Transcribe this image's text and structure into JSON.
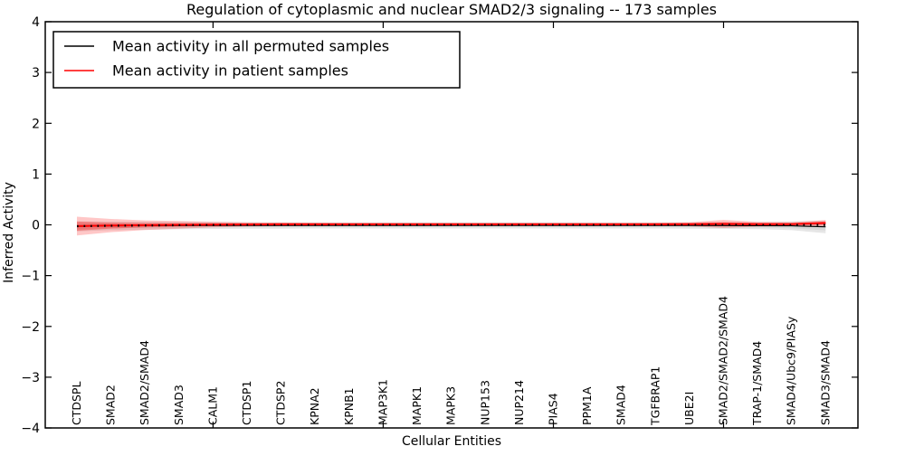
{
  "title": "Regulation of cytoplasmic and nuclear SMAD2/3 signaling -- 173 samples",
  "legend": {
    "items": [
      {
        "label": "Mean activity in all permuted samples",
        "color": "#000000"
      },
      {
        "label": "Mean activity in patient samples",
        "color": "#ff0000"
      }
    ],
    "position": "upper left"
  },
  "chart_data": {
    "type": "line",
    "title": "Regulation of cytoplasmic and nuclear SMAD2/3 signaling -- 173 samples",
    "xlabel": "Cellular Entities",
    "ylabel": "Inferred Activity",
    "ylim": [
      -4,
      4
    ],
    "grid": false,
    "ytick_values": [
      4,
      3,
      2,
      1,
      0,
      -1,
      -2,
      -3,
      -4
    ],
    "ytick_labels": [
      "4",
      "3",
      "2",
      "1",
      "0",
      "−1",
      "−2",
      "−3",
      "−4"
    ],
    "xtick_indices": [
      4,
      9,
      14,
      19
    ],
    "categories": [
      "CTDSPL",
      "SMAD2",
      "SMAD2/SMAD4",
      "SMAD3",
      "CALM1",
      "CTDSP1",
      "CTDSP2",
      "KPNA2",
      "KPNB1",
      "MAP3K1",
      "MAPK1",
      "MAPK3",
      "NUP153",
      "NUP214",
      "PIAS4",
      "PPM1A",
      "SMAD4",
      "TGFBRAP1",
      "UBE2I",
      "SMAD2/SMAD2/SMAD4",
      "TRAP-1/SMAD4",
      "SMAD4/Ubc9/PIASy",
      "SMAD3/SMAD4"
    ],
    "series": [
      {
        "name": "Mean activity in all permuted samples",
        "color": "#000000",
        "line_style": "solid-with-dotted-overlay",
        "values": [
          -0.03,
          -0.02,
          -0.018,
          -0.015,
          -0.013,
          -0.012,
          -0.012,
          -0.012,
          -0.012,
          -0.012,
          -0.012,
          -0.012,
          -0.012,
          -0.012,
          -0.012,
          -0.012,
          -0.012,
          -0.012,
          -0.013,
          -0.015,
          -0.016,
          -0.02,
          -0.04
        ],
        "std_band": [
          0.1,
          0.085,
          0.078,
          0.072,
          0.068,
          0.064,
          0.062,
          0.06,
          0.06,
          0.06,
          0.06,
          0.06,
          0.06,
          0.06,
          0.06,
          0.06,
          0.06,
          0.06,
          0.062,
          0.066,
          0.07,
          0.085,
          0.125
        ],
        "band_color": "#777777"
      },
      {
        "name": "Mean activity in patient samples",
        "color": "#ff0000",
        "line_style": "solid",
        "values": [
          -0.025,
          -0.015,
          -0.007,
          0.0,
          0.005,
          0.008,
          0.01,
          0.01,
          0.01,
          0.01,
          0.01,
          0.01,
          0.01,
          0.01,
          0.01,
          0.01,
          0.01,
          0.01,
          0.012,
          0.018,
          0.012,
          0.014,
          0.035
        ],
        "std_band_outer": [
          0.185,
          0.13,
          0.095,
          0.075,
          0.055,
          0.042,
          0.036,
          0.032,
          0.03,
          0.03,
          0.03,
          0.03,
          0.03,
          0.03,
          0.03,
          0.03,
          0.03,
          0.032,
          0.04,
          0.08,
          0.047,
          0.04,
          0.06
        ],
        "std_band_inner": [
          0.09,
          0.058,
          0.042,
          0.033,
          0.027,
          0.023,
          0.02,
          0.018,
          0.017,
          0.017,
          0.017,
          0.017,
          0.017,
          0.017,
          0.017,
          0.017,
          0.017,
          0.018,
          0.02,
          0.036,
          0.023,
          0.02,
          0.03
        ],
        "band_color": "#ff0000"
      }
    ]
  }
}
